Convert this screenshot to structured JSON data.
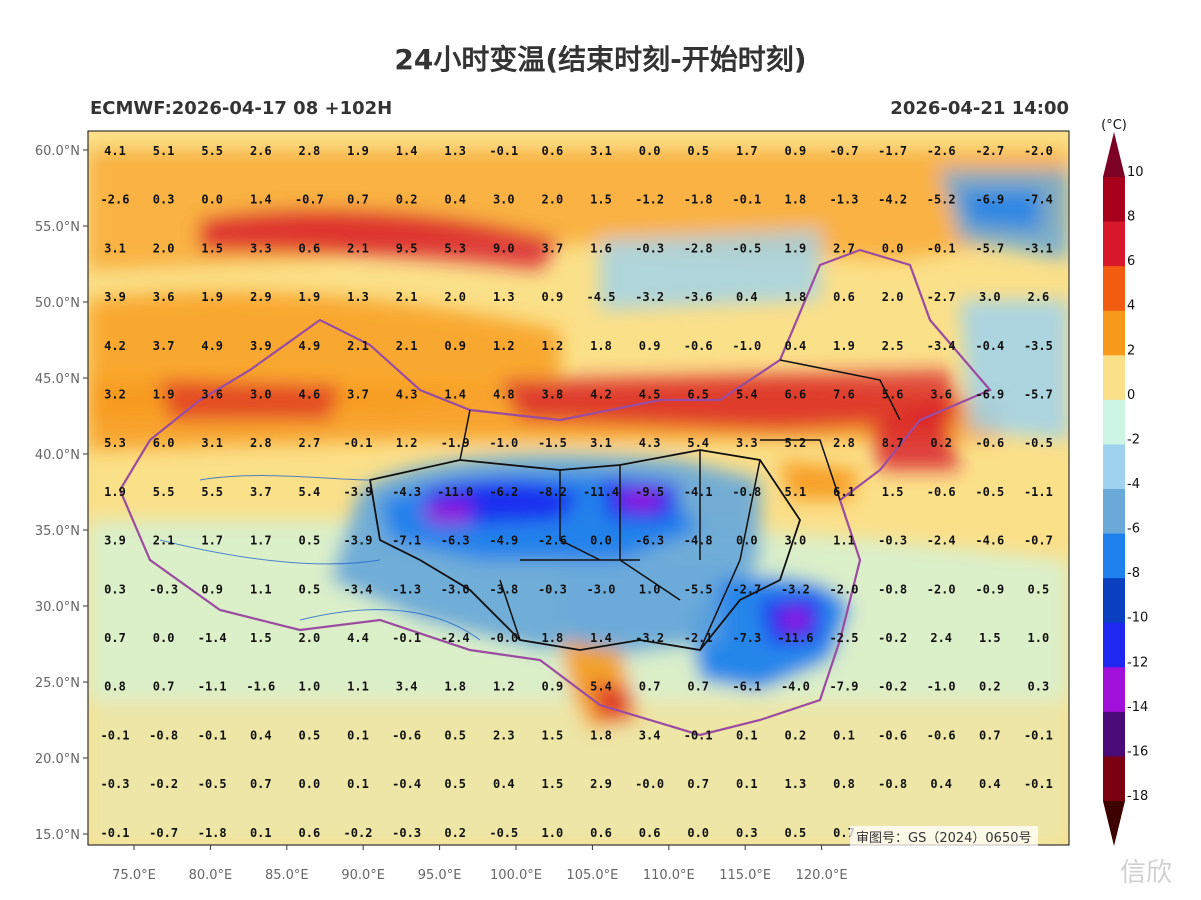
{
  "header": {
    "title": "24小时变温(结束时刻-开始时刻)",
    "model_run": "ECMWF:2026-04-17 08 +102H",
    "valid_time": "2026-04-21 14:00"
  },
  "map": {
    "lat_labels": [
      "60.0°N",
      "55.0°N",
      "50.0°N",
      "45.0°N",
      "40.0°N",
      "35.0°N",
      "30.0°N",
      "25.0°N",
      "20.0°N",
      "15.0°N"
    ],
    "lon_labels": [
      "75.0°E",
      "80.0°E",
      "85.0°E",
      "90.0°E",
      "95.0°E",
      "100.0°E",
      "105.0°E",
      "110.0°E",
      "115.0°E",
      "120.0°E"
    ],
    "grid_values": [
      [
        "4.1",
        "5.1",
        "5.5",
        "2.6",
        "2.8",
        "1.9",
        "1.4",
        "1.3",
        "-0.1",
        "0.6",
        "3.1",
        "0.0",
        "0.5",
        "1.7",
        "0.9",
        "-0.7",
        "-1.7",
        "-2.6",
        "-2.7",
        "-2.0"
      ],
      [
        "-2.6",
        "0.3",
        "0.0",
        "1.4",
        "-0.7",
        "0.7",
        "0.2",
        "0.4",
        "3.0",
        "2.0",
        "1.5",
        "-1.2",
        "-1.8",
        "-0.1",
        "1.8",
        "-1.3",
        "-4.2",
        "-5.2",
        "-6.9",
        "-7.4"
      ],
      [
        "3.1",
        "2.0",
        "1.5",
        "3.3",
        "0.6",
        "2.1",
        "9.5",
        "5.3",
        "9.0",
        "3.7",
        "1.6",
        "-0.3",
        "-2.8",
        "-0.5",
        "1.9",
        "2.7",
        "0.0",
        "-0.1",
        "-5.7",
        "-3.1"
      ],
      [
        "3.9",
        "3.6",
        "1.9",
        "2.9",
        "1.9",
        "1.3",
        "2.1",
        "2.0",
        "1.3",
        "0.9",
        "-4.5",
        "-3.2",
        "-3.6",
        "0.4",
        "1.8",
        "0.6",
        "2.0",
        "-2.7",
        "3.0",
        "2.6"
      ],
      [
        "4.2",
        "3.7",
        "4.9",
        "3.9",
        "4.9",
        "2.1",
        "2.1",
        "0.9",
        "1.2",
        "1.2",
        "1.8",
        "0.9",
        "-0.6",
        "-1.0",
        "0.4",
        "1.9",
        "2.5",
        "-3.4",
        "-0.4",
        "-3.5"
      ],
      [
        "3.2",
        "1.9",
        "3.6",
        "3.0",
        "4.6",
        "3.7",
        "4.3",
        "1.4",
        "4.8",
        "3.8",
        "4.2",
        "4.5",
        "6.5",
        "5.4",
        "6.6",
        "7.6",
        "5.6",
        "3.6",
        "-6.9",
        "-5.7"
      ],
      [
        "5.3",
        "6.0",
        "3.1",
        "2.8",
        "2.7",
        "-0.1",
        "1.2",
        "-1.9",
        "-1.0",
        "-1.5",
        "3.1",
        "4.3",
        "5.4",
        "3.3",
        "5.2",
        "2.8",
        "8.7",
        "0.2",
        "-0.6",
        "-0.5"
      ],
      [
        "1.9",
        "5.5",
        "5.5",
        "3.7",
        "5.4",
        "-3.9",
        "-4.3",
        "-11.0",
        "-6.2",
        "-8.2",
        "-11.4",
        "-9.5",
        "-4.1",
        "-0.8",
        "5.1",
        "6.1",
        "1.5",
        "-0.6",
        "-0.5",
        "-1.1"
      ],
      [
        "3.9",
        "2.1",
        "1.7",
        "1.7",
        "0.5",
        "-3.9",
        "-7.1",
        "-6.3",
        "-4.9",
        "-2.6",
        "0.0",
        "-6.3",
        "-4.8",
        "0.0",
        "3.0",
        "1.1",
        "-0.3",
        "-2.4",
        "-4.6",
        "-0.7"
      ],
      [
        "0.3",
        "-0.3",
        "0.9",
        "1.1",
        "0.5",
        "-3.4",
        "-1.3",
        "-3.0",
        "-3.8",
        "-0.3",
        "-3.0",
        "1.0",
        "-5.5",
        "-2.7",
        "-3.2",
        "-2.0",
        "-0.8",
        "-2.0",
        "-0.9",
        "0.5"
      ],
      [
        "0.7",
        "0.0",
        "-1.4",
        "1.5",
        "2.0",
        "4.4",
        "-0.1",
        "-2.4",
        "-0.0",
        "1.8",
        "1.4",
        "-3.2",
        "-2.1",
        "-7.3",
        "-11.6",
        "-2.5",
        "-0.2",
        "2.4",
        "1.5",
        "1.0"
      ],
      [
        "0.8",
        "0.7",
        "-1.1",
        "-1.6",
        "1.0",
        "1.1",
        "3.4",
        "1.8",
        "1.2",
        "0.9",
        "5.4",
        "0.7",
        "0.7",
        "-6.1",
        "-4.0",
        "-7.9",
        "-0.2",
        "-1.0",
        "0.2",
        "0.3"
      ],
      [
        "-0.1",
        "-0.8",
        "-0.1",
        "0.4",
        "0.5",
        "0.1",
        "-0.6",
        "0.5",
        "2.3",
        "1.5",
        "1.8",
        "3.4",
        "-0.1",
        "0.1",
        "0.2",
        "0.1",
        "-0.6",
        "-0.6",
        "0.7",
        "-0.1"
      ],
      [
        "-0.3",
        "-0.2",
        "-0.5",
        "0.7",
        "0.0",
        "0.1",
        "-0.4",
        "0.5",
        "0.4",
        "1.5",
        "2.9",
        "-0.0",
        "0.7",
        "0.1",
        "1.3",
        "0.8",
        "-0.8",
        "0.4",
        "0.4",
        "-0.1"
      ],
      [
        "-0.1",
        "-0.7",
        "-1.8",
        "0.1",
        "0.6",
        "-0.2",
        "-0.3",
        "0.2",
        "-0.5",
        "1.0",
        "0.6",
        "0.6",
        "0.0",
        "0.3",
        "0.5",
        "0.7",
        "",
        "",
        "",
        ""
      ]
    ],
    "approval_number": "审图号：GS（2024）0650号"
  },
  "colorbar": {
    "unit": "(°C)",
    "levels": [
      "10",
      "8",
      "6",
      "4",
      "2",
      "0",
      "-2",
      "-4",
      "-6",
      "-8",
      "-10",
      "-12",
      "-14",
      "-16",
      "-18"
    ],
    "colors": [
      "#a8001c",
      "#d7182a",
      "#f25c10",
      "#f79a1c",
      "#fbe08a",
      "#cdf5e4",
      "#9ed2ee",
      "#6aa9d8",
      "#1e80ec",
      "#0a3fc0",
      "#1e28f0",
      "#a010d8",
      "#4a0a78",
      "#7a0012"
    ],
    "top_cap_color": "#7d0025",
    "bottom_cap_color": "#3c0000"
  },
  "watermark": "信欣"
}
